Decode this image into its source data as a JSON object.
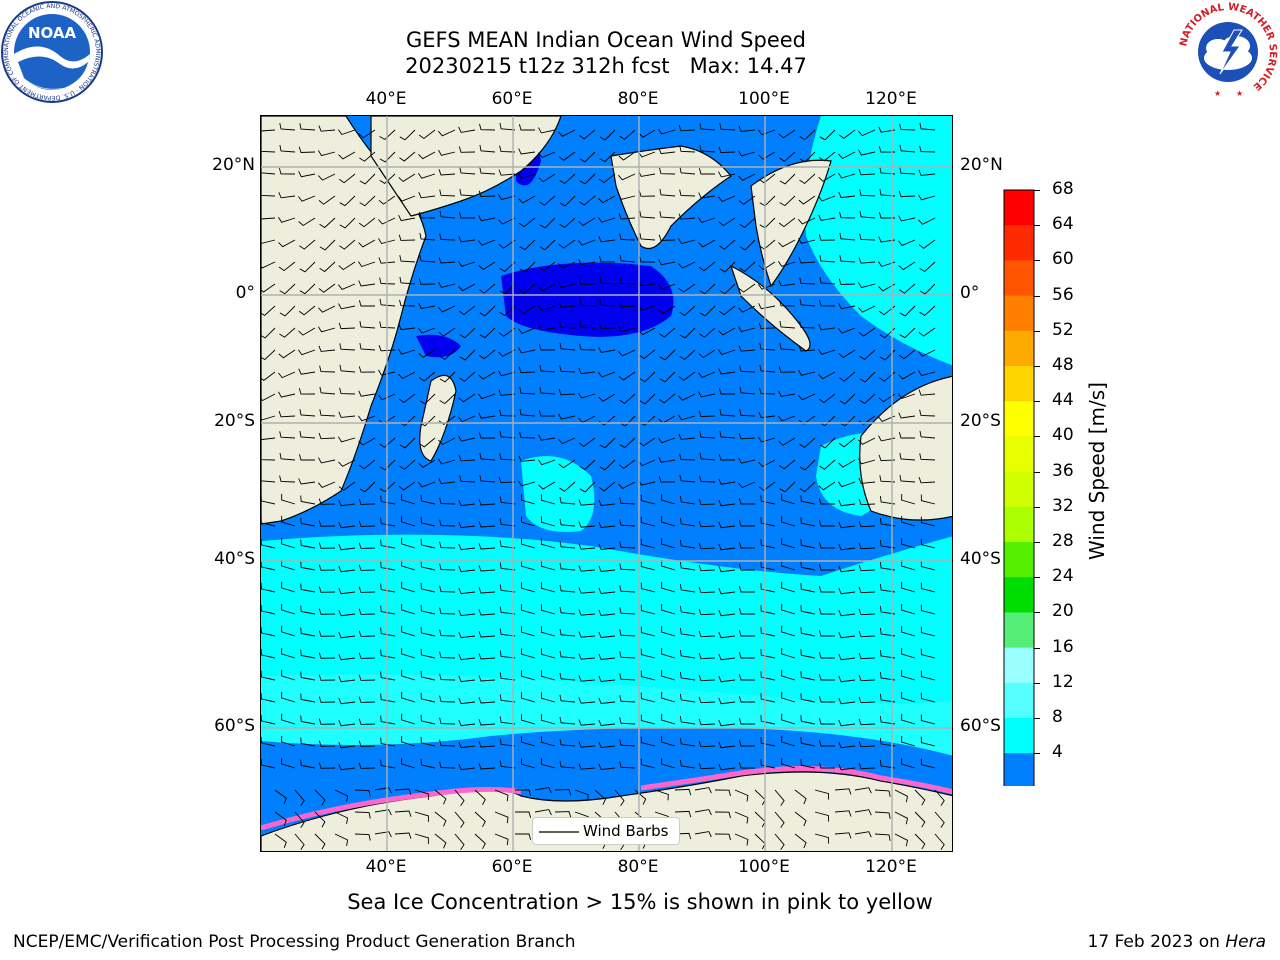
{
  "title": {
    "line1": "GEFS MEAN Indian Ocean Wind Speed",
    "line2": "20230215 t12z 312h fcst   Max: 14.47"
  },
  "axes": {
    "top_lon_labels": [
      "40°E",
      "60°E",
      "80°E",
      "100°E",
      "120°E"
    ],
    "bottom_lon_labels": [
      "40°E",
      "60°E",
      "80°E",
      "100°E",
      "120°E"
    ],
    "left_lat_labels": [
      "20°N",
      "0°",
      "20°S",
      "40°S",
      "60°S"
    ],
    "right_lat_labels": [
      "20°N",
      "0°",
      "20°S",
      "40°S",
      "60°S"
    ]
  },
  "colorbar": {
    "label": "Wind Speed [m/s]",
    "ticks": [
      "68",
      "64",
      "60",
      "56",
      "52",
      "48",
      "44",
      "40",
      "36",
      "32",
      "28",
      "24",
      "20",
      "16",
      "12",
      "8",
      "4"
    ],
    "colors": [
      "#ff0000",
      "#ff2a00",
      "#ff5500",
      "#ff7f00",
      "#ffaa00",
      "#ffd400",
      "#ffff00",
      "#e8ff00",
      "#cfff00",
      "#aaff00",
      "#55ee00",
      "#00dd00",
      "#55ee77",
      "#99ffff",
      "#55ffff",
      "#00ffff",
      "#0080ff"
    ],
    "extend_color": "#0000ff"
  },
  "legend": {
    "label": "Wind Barbs"
  },
  "footer": {
    "note": "Sea Ice Concentration > 15% is shown in pink to yellow",
    "credit_left": "NCEP/EMC/Verification Post Processing Product Generation Branch",
    "credit_date": "17 Feb 2023 on ",
    "credit_machine": "Hera"
  },
  "logos": {
    "noaa_text": "NOAA",
    "noaa_ring_text": "NATIONAL OCEANIC AND ATMOSPHERIC ADMINISTRATION · U.S. DEPARTMENT OF COMMERCE",
    "nws_ring_text": "NATIONAL WEATHER SERVICE"
  },
  "map_colors": {
    "land": "#eeeedd",
    "calm": "#0000ee",
    "low": "#0080ff",
    "mid": "#00ffff",
    "high": "#55ffff",
    "ice": "#ff66cc",
    "grid": "#b0b0b0"
  }
}
